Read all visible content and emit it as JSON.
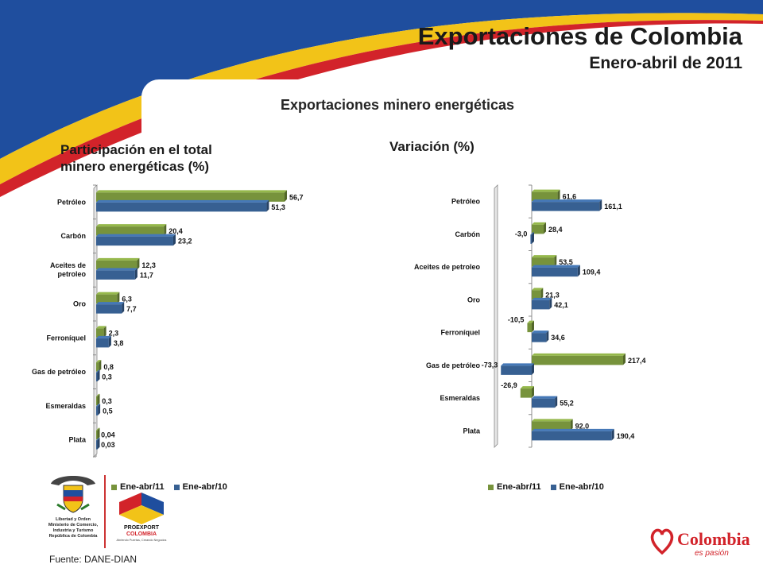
{
  "header": {
    "title": "Exportaciones de Colombia",
    "subtitle": "Enero-abril de 2011"
  },
  "section_title": "Exportaciones minero energéticas",
  "source": "Fuente: DANE-DIAN",
  "colors": {
    "green": "#77933C",
    "blue": "#376092",
    "swoosh_blue": "#1F4E9E",
    "swoosh_yellow": "#F2C318",
    "swoosh_red": "#D2232A"
  },
  "logos": {
    "ministry": [
      "Libertad y Orden",
      "Ministerio de Comercio,",
      "Industria y Turismo",
      "República de Colombia"
    ],
    "proexport": [
      "PROEXPORT",
      "COLOMBIA",
      "Abriendo Puertas, Creando Negocios"
    ],
    "colombia": [
      "Colombia",
      "es pasión"
    ]
  },
  "chart_data": [
    {
      "type": "bar",
      "orientation": "horizontal",
      "title": "Participación en el total minero energéticas (%)",
      "categories": [
        "Petróleo",
        "Carbón",
        "Aceites de petroleo",
        "Oro",
        "Ferroníquel",
        "Gas de petróleo",
        "Esmeraldas",
        "Plata"
      ],
      "series": [
        {
          "name": "Ene-abr/11",
          "values": [
            56.7,
            20.4,
            12.3,
            6.3,
            2.3,
            0.8,
            0.3,
            0.04
          ],
          "labels": [
            "56,7",
            "20,4",
            "12,3",
            "6,3",
            "2,3",
            "0,8",
            "0,3",
            "0,04"
          ]
        },
        {
          "name": "Ene-abr/10",
          "values": [
            51.3,
            23.2,
            11.7,
            7.7,
            3.8,
            0.3,
            0.5,
            0.03
          ],
          "labels": [
            "51,3",
            "23,2",
            "11,7",
            "7,7",
            "3,8",
            "0,3",
            "0,5",
            "0,03"
          ]
        }
      ],
      "legend": "bottom-left"
    },
    {
      "type": "bar",
      "orientation": "horizontal",
      "title": "Variación (%)",
      "categories": [
        "Petróleo",
        "Carbón",
        "Aceites de petroleo",
        "Oro",
        "Ferroníquel",
        "Gas de petróleo",
        "Esmeraldas",
        "Plata"
      ],
      "series": [
        {
          "name": "Ene-abr/11",
          "values": [
            61.6,
            28.4,
            53.5,
            21.3,
            -10.5,
            217.4,
            -26.9,
            92.0
          ],
          "labels": [
            "61,6",
            "28,4",
            "53,5",
            "21,3",
            "-10,5",
            "217,4",
            "-26,9",
            "92,0"
          ]
        },
        {
          "name": "Ene-abr/10",
          "values": [
            161.1,
            -3.0,
            109.4,
            42.1,
            34.6,
            -73.3,
            55.2,
            190.4
          ],
          "labels": [
            "161,1",
            "-3,0",
            "109,4",
            "42,1",
            "34,6",
            "-73,3",
            "55,2",
            "190,4"
          ]
        }
      ],
      "legend": "bottom-right"
    }
  ]
}
